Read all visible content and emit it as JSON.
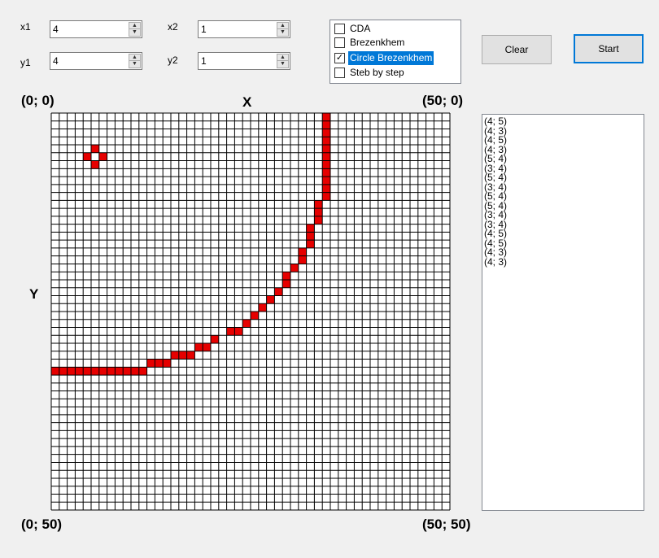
{
  "inputs": {
    "x1": {
      "label": "x1",
      "value": "4"
    },
    "y1": {
      "label": "y1",
      "value": "4"
    },
    "x2": {
      "label": "x2",
      "value": "1"
    },
    "y2": {
      "label": "y2",
      "value": "1"
    }
  },
  "algorithms": [
    {
      "label": "CDA",
      "checked": false,
      "selected": false
    },
    {
      "label": "Brezenkhem",
      "checked": false,
      "selected": false
    },
    {
      "label": "Circle Brezenkhem",
      "checked": true,
      "selected": true
    },
    {
      "label": "Steb by step",
      "checked": false,
      "selected": false
    }
  ],
  "buttons": {
    "clear": "Clear",
    "start": "Start"
  },
  "canvas": {
    "top_left": "(0; 0)",
    "top_right": "(50; 0)",
    "bottom_left": "(0; 50)",
    "bottom_right": "(50; 50)",
    "x_axis": "X",
    "y_axis": "Y",
    "cells_x": 50,
    "cells_y": 50,
    "pixel_color": "#e60000",
    "grid_color": "#000000",
    "filled_pixels": [
      [
        5,
        4
      ],
      [
        4,
        5
      ],
      [
        6,
        5
      ],
      [
        5,
        6
      ],
      [
        34,
        0
      ],
      [
        34,
        1
      ],
      [
        34,
        2
      ],
      [
        34,
        3
      ],
      [
        34,
        4
      ],
      [
        34,
        5
      ],
      [
        34,
        6
      ],
      [
        34,
        7
      ],
      [
        34,
        8
      ],
      [
        34,
        9
      ],
      [
        34,
        10
      ],
      [
        33,
        11
      ],
      [
        33,
        12
      ],
      [
        33,
        13
      ],
      [
        32,
        14
      ],
      [
        32,
        15
      ],
      [
        32,
        16
      ],
      [
        31,
        17
      ],
      [
        31,
        18
      ],
      [
        30,
        19
      ],
      [
        29,
        20
      ],
      [
        29,
        21
      ],
      [
        28,
        22
      ],
      [
        27,
        23
      ],
      [
        26,
        24
      ],
      [
        25,
        25
      ],
      [
        24,
        26
      ],
      [
        22,
        27
      ],
      [
        23,
        27
      ],
      [
        20,
        28
      ],
      [
        18,
        29
      ],
      [
        19,
        29
      ],
      [
        15,
        30
      ],
      [
        16,
        30
      ],
      [
        17,
        30
      ],
      [
        12,
        31
      ],
      [
        13,
        31
      ],
      [
        14,
        31
      ],
      [
        0,
        32
      ],
      [
        1,
        32
      ],
      [
        2,
        32
      ],
      [
        3,
        32
      ],
      [
        4,
        32
      ],
      [
        5,
        32
      ],
      [
        6,
        32
      ],
      [
        7,
        32
      ],
      [
        8,
        32
      ],
      [
        9,
        32
      ],
      [
        10,
        32
      ],
      [
        11,
        32
      ]
    ]
  },
  "log": [
    "(4; 5)",
    "(4; 3)",
    "(4; 5)",
    "(4; 3)",
    "(5; 4)",
    "(3; 4)",
    "(5; 4)",
    "(3; 4)",
    "(5; 4)",
    "(5; 4)",
    "(3; 4)",
    "(3; 4)",
    "(4; 5)",
    "(4; 5)",
    "(4; 3)",
    "(4; 3)"
  ]
}
